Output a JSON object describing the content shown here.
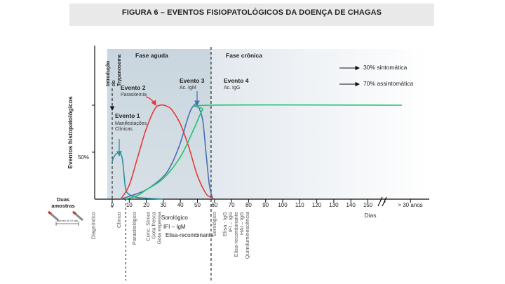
{
  "title": "FIGURA 6 – EVENTOS FISIOPATOLÓGICOS DA DOENÇA DE CHAGAS",
  "chart_data": {
    "type": "line",
    "ylabel": "Eventos histopatológicos",
    "y_mid_label": "50%",
    "xlabel": "Dias",
    "x_ticks": [
      0,
      10,
      20,
      30,
      40,
      50,
      60,
      70,
      80,
      90,
      100,
      110,
      120,
      130,
      140,
      150
    ],
    "x_tick_labels": [
      "0",
      "10",
      "20",
      "30",
      "40",
      "50",
      "60",
      "70",
      "80",
      "90",
      "100",
      "110",
      "120",
      "130",
      "140",
      "150"
    ],
    "x_end_label": "> 30 anos",
    "xlim": [
      -15,
      185
    ],
    "ylim": [
      0,
      100
    ],
    "phases": [
      {
        "label": "Fase aguda",
        "x_start": -3,
        "x_end": 58
      },
      {
        "label": "Fase crônica",
        "x_start": 58,
        "x_end": 185
      }
    ],
    "series": [
      {
        "color": "#2e8fa0",
        "x": [
          0,
          1,
          3,
          5,
          6,
          7,
          8,
          10,
          14,
          20,
          30
        ],
        "y": [
          40,
          45,
          49,
          48,
          42,
          25,
          10,
          5,
          2,
          1,
          0
        ]
      },
      {
        "color": "#e53935",
        "x": [
          5,
          10,
          15,
          20,
          25,
          28,
          30,
          32,
          35,
          40,
          45,
          50,
          55,
          58,
          60
        ],
        "y": [
          0,
          15,
          45,
          75,
          96,
          100,
          100,
          99,
          95,
          80,
          55,
          25,
          6,
          2,
          0
        ]
      },
      {
        "color": "#4c6fb0",
        "x": [
          5,
          10,
          20,
          30,
          35,
          40,
          45,
          48,
          50,
          53,
          55,
          57,
          59
        ],
        "y": [
          0,
          3,
          10,
          24,
          38,
          60,
          90,
          100,
          100,
          85,
          50,
          15,
          0
        ]
      },
      {
        "color": "#22c36e",
        "x": [
          8,
          15,
          20,
          30,
          40,
          48,
          53,
          57,
          170
        ],
        "y": [
          0,
          4,
          10,
          22,
          45,
          75,
          95,
          100,
          100
        ]
      }
    ],
    "events": [
      {
        "title": "Evento 1",
        "sub": "Manifestações Clínicas"
      },
      {
        "title": "Evento 2",
        "sub": "Parasitemia"
      },
      {
        "title": "Evento 3",
        "sub": "Ac. IgM"
      },
      {
        "title": "Evento 4",
        "sub": "Ac. IgG"
      }
    ],
    "inoculation_label": [
      "Introdução",
      "do",
      "Trypanosoma"
    ],
    "outcomes": [
      "30% sintomática",
      "70% assintomática"
    ],
    "samples_label": [
      "Duas",
      "amostras"
    ],
    "samples_interval_label": "intervalo de 15 dias",
    "serology_acute": [
      "Sorológico",
      "IFI – IgM",
      "Elisa-recombinante"
    ],
    "bottom_labels": [
      {
        "x": -10,
        "lines": [
          "Diagnóstico"
        ]
      },
      {
        "x": 5,
        "lines": [
          "Clínico"
        ]
      },
      {
        "x": 14,
        "lines": [
          "Parasitológico"
        ]
      },
      {
        "x": 22,
        "lines": [
          "Conc. Strout",
          "Gota fresca",
          "Gota espessa"
        ]
      },
      {
        "x": 61,
        "lines": [
          "Sorológico"
        ]
      },
      {
        "x": 67,
        "lines": [
          "Elisa - IgG",
          "IFI – IgG",
          "Elisa-recombinante",
          "HAI – IgG",
          "Quimiluminescência"
        ]
      }
    ]
  }
}
